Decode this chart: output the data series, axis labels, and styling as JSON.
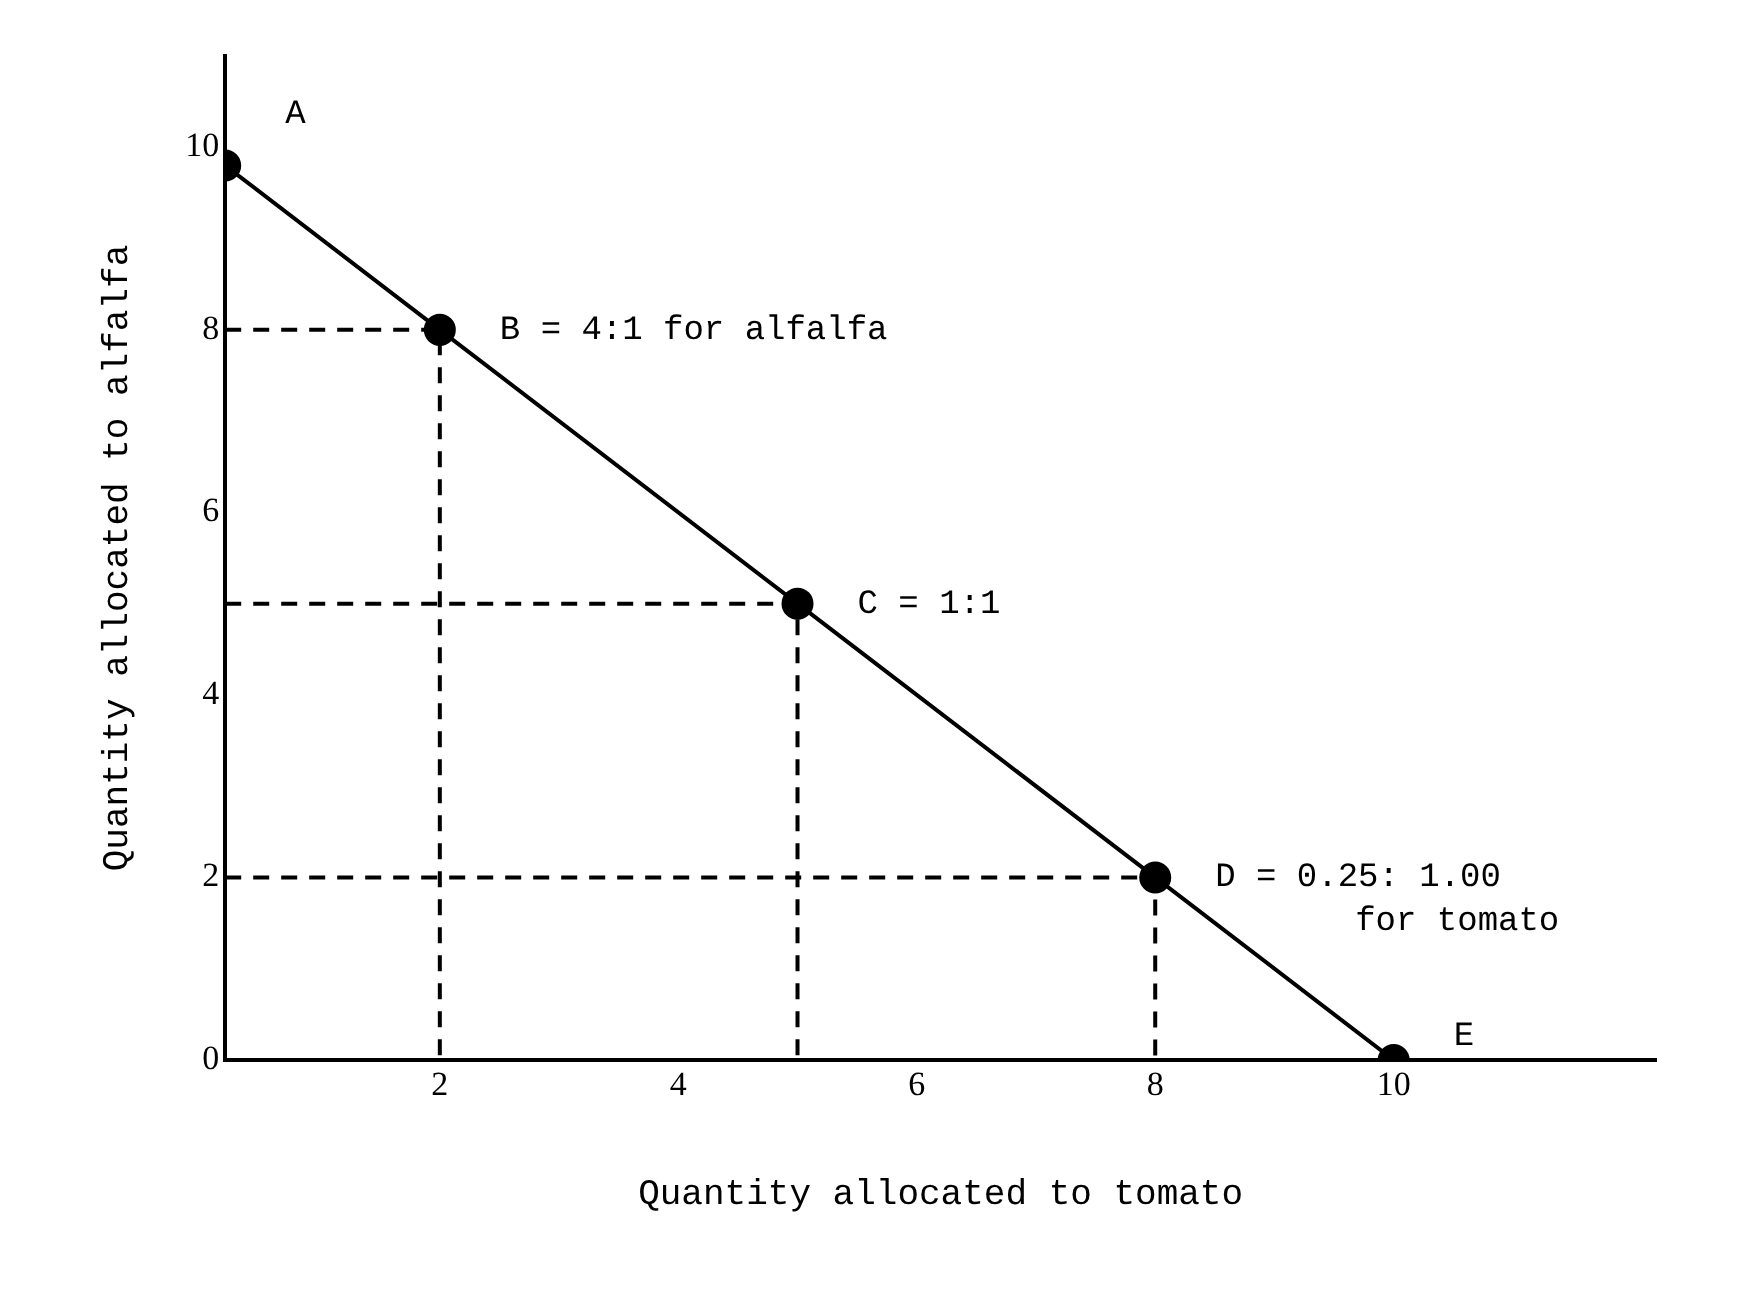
{
  "chart_data": {
    "type": "line",
    "xlabel": "Quantity allocated to tomato",
    "ylabel": "Quantity allocated to alfalfa",
    "xlim": [
      0.2,
      12.2
    ],
    "ylim": [
      0,
      11
    ],
    "xticks": [
      2,
      4,
      6,
      8,
      10
    ],
    "yticks": [
      0,
      2,
      4,
      6,
      8,
      10
    ],
    "grid": false,
    "legend": false,
    "series": [
      {
        "type": "line",
        "color": "#000000",
        "marker": "circle",
        "line_style": "solid",
        "x": [
          0.2,
          2,
          5,
          8,
          10
        ],
        "values": [
          9.8,
          8,
          5,
          2,
          0
        ]
      },
      {
        "type": "line",
        "color": "#000000",
        "marker": "none",
        "line_style": "dashed",
        "x": [
          0.2,
          2,
          2
        ],
        "values": [
          8,
          8,
          0
        ]
      },
      {
        "type": "line",
        "color": "#000000",
        "marker": "none",
        "line_style": "dashed",
        "x": [
          0.2,
          5,
          5
        ],
        "values": [
          5,
          5,
          0
        ]
      },
      {
        "type": "line",
        "color": "#000000",
        "marker": "none",
        "line_style": "dashed",
        "x": [
          0.2,
          8,
          8
        ],
        "values": [
          2,
          2,
          0
        ]
      }
    ],
    "annotations": [
      {
        "text": "A",
        "x": 0.2,
        "y": 9.8
      },
      {
        "text": "B = 4:1 for alfalfa",
        "x": 2,
        "y": 8
      },
      {
        "text": "C = 1:1",
        "x": 5,
        "y": 5
      },
      {
        "text": "D = 0.25: 1.00\nfor tomato",
        "x": 8,
        "y": 2
      },
      {
        "text": "E",
        "x": 10,
        "y": 0
      }
    ]
  }
}
